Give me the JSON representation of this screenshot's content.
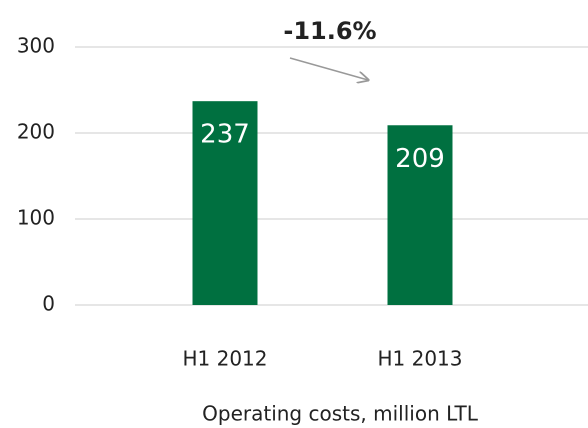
{
  "chart_data": {
    "type": "bar",
    "categories": [
      "H1 2012",
      "H1 2013"
    ],
    "values": [
      237,
      209
    ],
    "color": "#007040",
    "ylim": [
      0,
      300
    ],
    "yticks": [
      0,
      100,
      200,
      300
    ],
    "grid": true,
    "annotation": "-11.6%",
    "x_label": "Operating costs, million LTL"
  }
}
